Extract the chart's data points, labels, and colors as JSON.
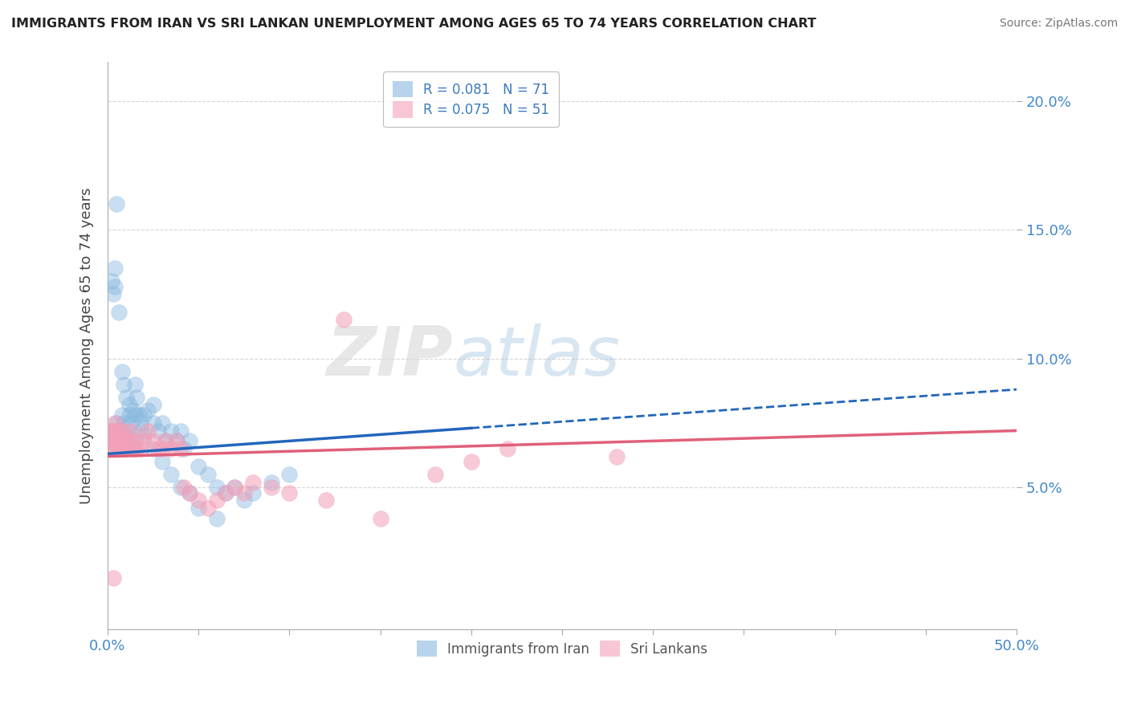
{
  "title": "IMMIGRANTS FROM IRAN VS SRI LANKAN UNEMPLOYMENT AMONG AGES 65 TO 74 YEARS CORRELATION CHART",
  "source": "Source: ZipAtlas.com",
  "ylabel": "Unemployment Among Ages 65 to 74 years",
  "xlim": [
    0,
    0.5
  ],
  "ylim": [
    -0.005,
    0.215
  ],
  "yticks": [
    0.05,
    0.1,
    0.15,
    0.2
  ],
  "ytick_labels": [
    "5.0%",
    "10.0%",
    "15.0%",
    "20.0%"
  ],
  "legend_iran": {
    "R": "0.081",
    "N": "71"
  },
  "legend_srilanka": {
    "R": "0.075",
    "N": "51"
  },
  "iran_color": "#89b8e0",
  "srilanka_color": "#f4a0b8",
  "iran_line_color": "#2266bb",
  "srilanka_line_color": "#e0607a",
  "iran_scatter": [
    [
      0.001,
      0.068
    ],
    [
      0.002,
      0.068
    ],
    [
      0.002,
      0.072
    ],
    [
      0.003,
      0.07
    ],
    [
      0.003,
      0.068
    ],
    [
      0.004,
      0.065
    ],
    [
      0.004,
      0.072
    ],
    [
      0.005,
      0.068
    ],
    [
      0.005,
      0.075
    ],
    [
      0.006,
      0.065
    ],
    [
      0.006,
      0.072
    ],
    [
      0.007,
      0.068
    ],
    [
      0.007,
      0.065
    ],
    [
      0.008,
      0.072
    ],
    [
      0.008,
      0.078
    ],
    [
      0.009,
      0.068
    ],
    [
      0.009,
      0.075
    ],
    [
      0.01,
      0.07
    ],
    [
      0.01,
      0.065
    ],
    [
      0.011,
      0.068
    ],
    [
      0.011,
      0.072
    ],
    [
      0.012,
      0.078
    ],
    [
      0.012,
      0.068
    ],
    [
      0.013,
      0.075
    ],
    [
      0.014,
      0.08
    ],
    [
      0.014,
      0.065
    ],
    [
      0.015,
      0.09
    ],
    [
      0.016,
      0.085
    ],
    [
      0.017,
      0.078
    ],
    [
      0.018,
      0.072
    ],
    [
      0.02,
      0.078
    ],
    [
      0.022,
      0.08
    ],
    [
      0.025,
      0.082
    ],
    [
      0.025,
      0.075
    ],
    [
      0.028,
      0.072
    ],
    [
      0.03,
      0.075
    ],
    [
      0.032,
      0.068
    ],
    [
      0.035,
      0.072
    ],
    [
      0.038,
      0.068
    ],
    [
      0.04,
      0.072
    ],
    [
      0.042,
      0.065
    ],
    [
      0.045,
      0.068
    ],
    [
      0.05,
      0.058
    ],
    [
      0.055,
      0.055
    ],
    [
      0.06,
      0.05
    ],
    [
      0.065,
      0.048
    ],
    [
      0.07,
      0.05
    ],
    [
      0.075,
      0.045
    ],
    [
      0.08,
      0.048
    ],
    [
      0.09,
      0.052
    ],
    [
      0.1,
      0.055
    ],
    [
      0.002,
      0.13
    ],
    [
      0.003,
      0.125
    ],
    [
      0.004,
      0.135
    ],
    [
      0.004,
      0.128
    ],
    [
      0.006,
      0.118
    ],
    [
      0.005,
      0.16
    ],
    [
      0.008,
      0.095
    ],
    [
      0.009,
      0.09
    ],
    [
      0.01,
      0.085
    ],
    [
      0.012,
      0.082
    ],
    [
      0.015,
      0.078
    ],
    [
      0.018,
      0.075
    ],
    [
      0.02,
      0.07
    ],
    [
      0.025,
      0.065
    ],
    [
      0.03,
      0.06
    ],
    [
      0.035,
      0.055
    ],
    [
      0.04,
      0.05
    ],
    [
      0.045,
      0.048
    ],
    [
      0.05,
      0.042
    ],
    [
      0.06,
      0.038
    ]
  ],
  "srilanka_scatter": [
    [
      0.001,
      0.065
    ],
    [
      0.002,
      0.068
    ],
    [
      0.002,
      0.072
    ],
    [
      0.003,
      0.068
    ],
    [
      0.003,
      0.072
    ],
    [
      0.004,
      0.065
    ],
    [
      0.004,
      0.075
    ],
    [
      0.005,
      0.068
    ],
    [
      0.005,
      0.072
    ],
    [
      0.006,
      0.065
    ],
    [
      0.006,
      0.068
    ],
    [
      0.007,
      0.072
    ],
    [
      0.008,
      0.068
    ],
    [
      0.008,
      0.065
    ],
    [
      0.009,
      0.072
    ],
    [
      0.01,
      0.068
    ],
    [
      0.01,
      0.065
    ],
    [
      0.012,
      0.068
    ],
    [
      0.013,
      0.072
    ],
    [
      0.014,
      0.065
    ],
    [
      0.015,
      0.068
    ],
    [
      0.016,
      0.065
    ],
    [
      0.018,
      0.065
    ],
    [
      0.02,
      0.068
    ],
    [
      0.022,
      0.072
    ],
    [
      0.025,
      0.068
    ],
    [
      0.028,
      0.065
    ],
    [
      0.03,
      0.065
    ],
    [
      0.032,
      0.068
    ],
    [
      0.035,
      0.065
    ],
    [
      0.038,
      0.068
    ],
    [
      0.04,
      0.065
    ],
    [
      0.042,
      0.05
    ],
    [
      0.045,
      0.048
    ],
    [
      0.05,
      0.045
    ],
    [
      0.055,
      0.042
    ],
    [
      0.06,
      0.045
    ],
    [
      0.065,
      0.048
    ],
    [
      0.07,
      0.05
    ],
    [
      0.075,
      0.048
    ],
    [
      0.08,
      0.052
    ],
    [
      0.09,
      0.05
    ],
    [
      0.1,
      0.048
    ],
    [
      0.12,
      0.045
    ],
    [
      0.13,
      0.115
    ],
    [
      0.15,
      0.038
    ],
    [
      0.18,
      0.055
    ],
    [
      0.2,
      0.06
    ],
    [
      0.003,
      0.015
    ],
    [
      0.22,
      0.065
    ],
    [
      0.28,
      0.062
    ]
  ],
  "iran_line_solid": {
    "x0": 0.0,
    "y0": 0.063,
    "x1": 0.2,
    "y1": 0.073
  },
  "iran_line_dashed": {
    "x0": 0.2,
    "y0": 0.073,
    "x1": 0.5,
    "y1": 0.088
  },
  "srilanka_line": {
    "x0": 0.0,
    "y0": 0.062,
    "x1": 0.5,
    "y1": 0.072
  },
  "background_color": "#ffffff",
  "grid_color": "#cccccc",
  "watermark_zip": "ZIP",
  "watermark_atlas": "atlas"
}
